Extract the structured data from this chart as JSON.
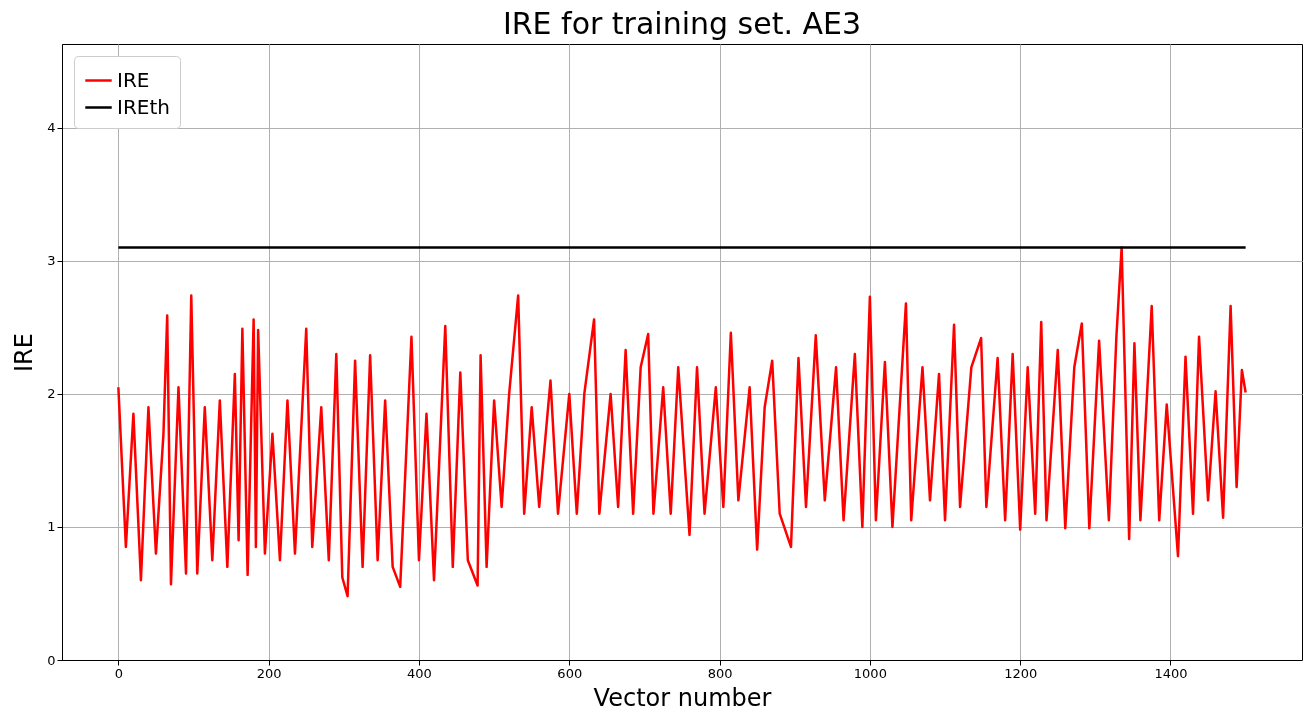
{
  "chart_data": {
    "type": "line",
    "title": "IRE for training set. AE3",
    "xlabel": "Vector number",
    "ylabel": "IRE",
    "xlim": [
      -75,
      1575
    ],
    "ylim": [
      0,
      4.63
    ],
    "xticks": [
      0,
      200,
      400,
      600,
      800,
      1000,
      1200,
      1400
    ],
    "yticks": [
      0,
      1,
      2,
      3,
      4
    ],
    "grid": true,
    "legend": "top left",
    "series": [
      {
        "name": "IRE",
        "color": "#ff0000",
        "x": [
          0,
          10,
          20,
          30,
          40,
          50,
          60,
          65,
          70,
          80,
          90,
          97,
          105,
          115,
          125,
          135,
          145,
          155,
          160,
          165,
          172,
          180,
          183,
          186,
          195,
          205,
          215,
          225,
          235,
          250,
          258,
          270,
          280,
          290,
          298,
          305,
          315,
          325,
          335,
          345,
          355,
          365,
          375,
          390,
          400,
          410,
          420,
          435,
          445,
          455,
          465,
          478,
          482,
          490,
          500,
          510,
          520,
          532,
          540,
          550,
          560,
          575,
          585,
          600,
          610,
          620,
          633,
          640,
          655,
          665,
          675,
          685,
          695,
          705,
          712,
          725,
          735,
          745,
          760,
          770,
          780,
          795,
          805,
          815,
          825,
          840,
          850,
          860,
          870,
          880,
          895,
          905,
          915,
          928,
          940,
          955,
          965,
          980,
          990,
          1000,
          1008,
          1020,
          1030,
          1048,
          1055,
          1070,
          1080,
          1092,
          1100,
          1112,
          1120,
          1135,
          1148,
          1155,
          1170,
          1180,
          1190,
          1200,
          1210,
          1220,
          1228,
          1235,
          1250,
          1260,
          1272,
          1282,
          1292,
          1305,
          1318,
          1328,
          1335,
          1345,
          1352,
          1360,
          1375,
          1385,
          1395,
          1410,
          1420,
          1430,
          1438,
          1450,
          1460,
          1470,
          1480,
          1488,
          1495,
          1500
        ],
        "values": [
          2.05,
          0.85,
          1.85,
          0.6,
          1.9,
          0.8,
          1.7,
          2.59,
          0.57,
          2.05,
          0.65,
          2.74,
          0.65,
          1.9,
          0.75,
          1.95,
          0.7,
          2.15,
          0.9,
          2.49,
          0.64,
          2.56,
          0.85,
          2.48,
          0.8,
          1.7,
          0.75,
          1.95,
          0.8,
          2.49,
          0.85,
          1.9,
          0.75,
          2.3,
          0.62,
          0.48,
          2.25,
          0.7,
          2.29,
          0.75,
          1.95,
          0.7,
          0.55,
          2.43,
          0.75,
          1.85,
          0.6,
          2.51,
          0.7,
          2.16,
          0.75,
          0.56,
          2.29,
          0.7,
          1.95,
          1.15,
          2.0,
          2.74,
          1.1,
          1.9,
          1.15,
          2.1,
          1.1,
          2.0,
          1.1,
          2.0,
          2.56,
          1.1,
          2.0,
          1.15,
          2.33,
          1.1,
          2.2,
          2.45,
          1.1,
          2.05,
          1.1,
          2.2,
          0.94,
          2.2,
          1.1,
          2.05,
          1.15,
          2.46,
          1.2,
          2.05,
          0.83,
          1.9,
          2.25,
          1.1,
          0.85,
          2.27,
          1.15,
          2.44,
          1.2,
          2.2,
          1.05,
          2.3,
          1.0,
          2.73,
          1.05,
          2.24,
          1.0,
          2.68,
          1.05,
          2.2,
          1.2,
          2.15,
          1.05,
          2.52,
          1.15,
          2.2,
          2.42,
          1.15,
          2.27,
          1.05,
          2.3,
          0.98,
          2.2,
          1.1,
          2.54,
          1.05,
          2.33,
          0.99,
          2.2,
          2.53,
          0.99,
          2.4,
          1.05,
          2.43,
          3.1,
          0.91,
          2.38,
          1.05,
          2.66,
          1.05,
          1.92,
          0.78,
          2.28,
          1.1,
          2.43,
          1.2,
          2.02,
          1.07,
          2.66,
          1.3,
          2.18,
          2.01
        ]
      },
      {
        "name": "IREth",
        "color": "#000000",
        "x": [
          0,
          1500
        ],
        "values": [
          3.1,
          3.1
        ]
      }
    ]
  }
}
